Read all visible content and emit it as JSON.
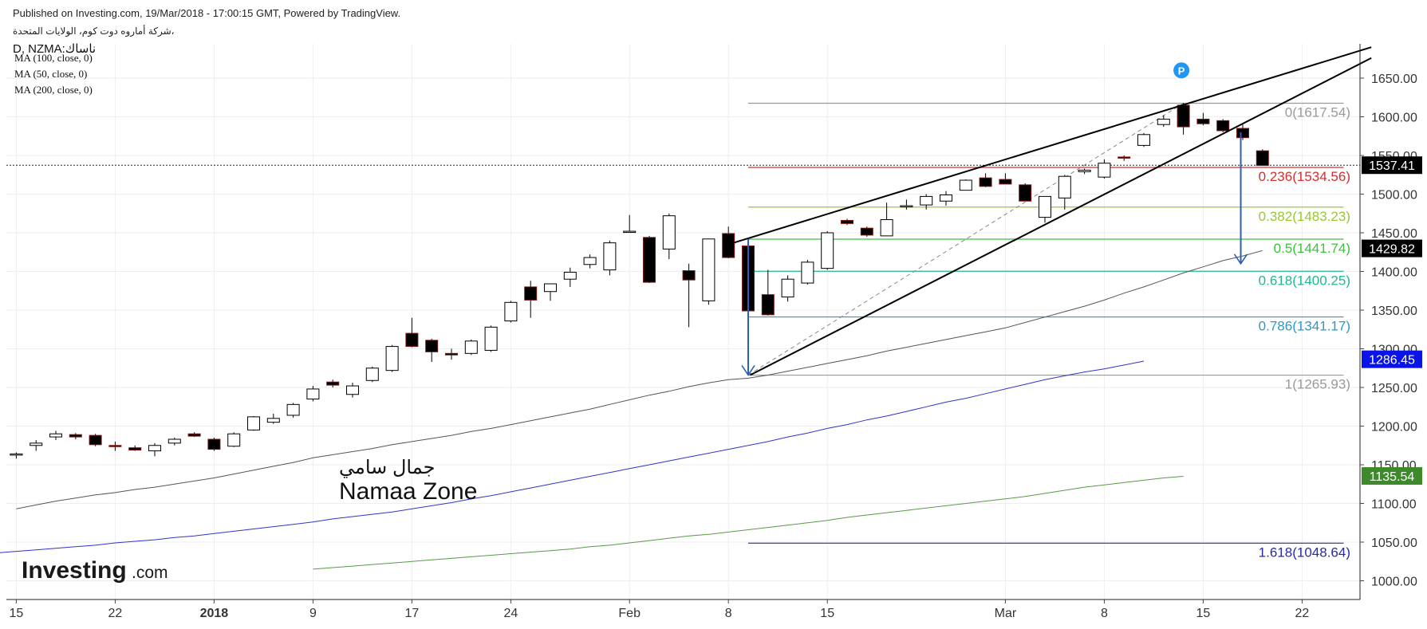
{
  "header": {
    "published": "Published on Investing.com, 19/Mar/2018 - 17:00:15 GMT, Powered by TradingView.",
    "company": "شركة أماروه دوت كوم، الولايات المتحدة،",
    "symbol": "D, NZMA:ناساك",
    "indicators": [
      "MA (100, close, 0)",
      "MA (50, close, 0)",
      "MA (200, close, 0)"
    ]
  },
  "watermark": {
    "arabic": "جمال سامي",
    "english": "Namaa Zone"
  },
  "logo": {
    "text": "Investing",
    "suffix": ".com"
  },
  "colors": {
    "up_fill": "#ffffff",
    "down_fill": "#000000",
    "candle_outline": "#000000",
    "ma100": "#555555",
    "ma50": "#3333cc",
    "ma200": "#5a9a4a",
    "arrow": "#2b5fb8",
    "trendline": "#000000",
    "marker": "#2196f3"
  },
  "chart_data": {
    "type": "candlestick",
    "y_axis": {
      "range": [
        980,
        1690
      ],
      "ticks": [
        "1650.00",
        "1600.00",
        "1550.00",
        "1500.00",
        "1450.00",
        "1400.00",
        "1350.00",
        "1300.00",
        "1250.00",
        "1200.00",
        "1150.00",
        "1100.00",
        "1050.00",
        "1000.00"
      ],
      "tick_values": [
        1650,
        1600,
        1550,
        1500,
        1450,
        1400,
        1350,
        1300,
        1250,
        1200,
        1150,
        1100,
        1050,
        1000
      ]
    },
    "x_axis": {
      "labels": [
        {
          "text": "15",
          "slot": 0.5,
          "bold": false
        },
        {
          "text": "22",
          "slot": 5.5,
          "bold": false
        },
        {
          "text": "2018",
          "slot": 10.5,
          "bold": true
        },
        {
          "text": "9",
          "slot": 15.5,
          "bold": false
        },
        {
          "text": "17",
          "slot": 20.5,
          "bold": false
        },
        {
          "text": "24",
          "slot": 25.5,
          "bold": false
        },
        {
          "text": "Feb",
          "slot": 31.5,
          "bold": false
        },
        {
          "text": "8",
          "slot": 36.5,
          "bold": false
        },
        {
          "text": "15",
          "slot": 41.5,
          "bold": false
        },
        {
          "text": "Mar",
          "slot": 50.5,
          "bold": false
        },
        {
          "text": "8",
          "slot": 55.5,
          "bold": false
        },
        {
          "text": "15",
          "slot": 60.5,
          "bold": false
        },
        {
          "text": "22",
          "slot": 65.5,
          "bold": false
        }
      ]
    },
    "candles": [
      {
        "o": 1163,
        "h": 1166,
        "l": 1158,
        "c": 1164
      },
      {
        "o": 1175,
        "h": 1182,
        "l": 1168,
        "c": 1178
      },
      {
        "o": 1186,
        "h": 1194,
        "l": 1182,
        "c": 1190
      },
      {
        "o": 1189,
        "h": 1191,
        "l": 1183,
        "c": 1186
      },
      {
        "o": 1188,
        "h": 1190,
        "l": 1174,
        "c": 1176
      },
      {
        "o": 1175,
        "h": 1180,
        "l": 1168,
        "c": 1174
      },
      {
        "o": 1172,
        "h": 1175,
        "l": 1168,
        "c": 1169
      },
      {
        "o": 1168,
        "h": 1178,
        "l": 1161,
        "c": 1175
      },
      {
        "o": 1178,
        "h": 1185,
        "l": 1175,
        "c": 1183
      },
      {
        "o": 1190,
        "h": 1192,
        "l": 1186,
        "c": 1187
      },
      {
        "o": 1183,
        "h": 1185,
        "l": 1168,
        "c": 1170
      },
      {
        "o": 1174,
        "h": 1192,
        "l": 1173,
        "c": 1190
      },
      {
        "o": 1195,
        "h": 1213,
        "l": 1194,
        "c": 1212
      },
      {
        "o": 1205,
        "h": 1216,
        "l": 1203,
        "c": 1210
      },
      {
        "o": 1214,
        "h": 1230,
        "l": 1211,
        "c": 1228
      },
      {
        "o": 1235,
        "h": 1252,
        "l": 1232,
        "c": 1248
      },
      {
        "o": 1257,
        "h": 1260,
        "l": 1250,
        "c": 1253
      },
      {
        "o": 1241,
        "h": 1256,
        "l": 1237,
        "c": 1252
      },
      {
        "o": 1259,
        "h": 1277,
        "l": 1257,
        "c": 1275
      },
      {
        "o": 1272,
        "h": 1305,
        "l": 1270,
        "c": 1303
      },
      {
        "o": 1320,
        "h": 1340,
        "l": 1302,
        "c": 1303
      },
      {
        "o": 1311,
        "h": 1313,
        "l": 1283,
        "c": 1296
      },
      {
        "o": 1294,
        "h": 1300,
        "l": 1286,
        "c": 1292
      },
      {
        "o": 1294,
        "h": 1312,
        "l": 1292,
        "c": 1310
      },
      {
        "o": 1298,
        "h": 1330,
        "l": 1296,
        "c": 1328
      },
      {
        "o": 1336,
        "h": 1362,
        "l": 1334,
        "c": 1360
      },
      {
        "o": 1380,
        "h": 1388,
        "l": 1340,
        "c": 1363
      },
      {
        "o": 1374,
        "h": 1384,
        "l": 1362,
        "c": 1384
      },
      {
        "o": 1390,
        "h": 1405,
        "l": 1380,
        "c": 1399
      },
      {
        "o": 1409,
        "h": 1422,
        "l": 1404,
        "c": 1418
      },
      {
        "o": 1402,
        "h": 1440,
        "l": 1395,
        "c": 1437
      },
      {
        "o": 1451,
        "h": 1473,
        "l": 1450,
        "c": 1452
      },
      {
        "o": 1444,
        "h": 1446,
        "l": 1385,
        "c": 1386
      },
      {
        "o": 1429,
        "h": 1475,
        "l": 1416,
        "c": 1472
      },
      {
        "o": 1401,
        "h": 1410,
        "l": 1328,
        "c": 1389
      },
      {
        "o": 1362,
        "h": 1441,
        "l": 1357,
        "c": 1442
      },
      {
        "o": 1449,
        "h": 1458,
        "l": 1417,
        "c": 1418
      },
      {
        "o": 1433,
        "h": 1440,
        "l": 1340,
        "c": 1349
      },
      {
        "o": 1370,
        "h": 1402,
        "l": 1343,
        "c": 1344
      },
      {
        "o": 1367,
        "h": 1395,
        "l": 1361,
        "c": 1390
      },
      {
        "o": 1385,
        "h": 1415,
        "l": 1383,
        "c": 1412
      },
      {
        "o": 1404,
        "h": 1452,
        "l": 1402,
        "c": 1450
      },
      {
        "o": 1466,
        "h": 1468,
        "l": 1460,
        "c": 1462
      },
      {
        "o": 1456,
        "h": 1458,
        "l": 1445,
        "c": 1447
      },
      {
        "o": 1446,
        "h": 1489,
        "l": 1446,
        "c": 1467
      },
      {
        "o": 1484,
        "h": 1493,
        "l": 1480,
        "c": 1485
      },
      {
        "o": 1486,
        "h": 1500,
        "l": 1480,
        "c": 1497
      },
      {
        "o": 1491,
        "h": 1504,
        "l": 1485,
        "c": 1499
      },
      {
        "o": 1505,
        "h": 1519,
        "l": 1505,
        "c": 1518
      },
      {
        "o": 1521,
        "h": 1527,
        "l": 1509,
        "c": 1510
      },
      {
        "o": 1519,
        "h": 1527,
        "l": 1514,
        "c": 1513
      },
      {
        "o": 1512,
        "h": 1514,
        "l": 1491,
        "c": 1491
      },
      {
        "o": 1470,
        "h": 1496,
        "l": 1463,
        "c": 1497
      },
      {
        "o": 1495,
        "h": 1525,
        "l": 1480,
        "c": 1523
      },
      {
        "o": 1529,
        "h": 1533,
        "l": 1526,
        "c": 1531
      },
      {
        "o": 1522,
        "h": 1545,
        "l": 1520,
        "c": 1540
      },
      {
        "o": 1548,
        "h": 1550,
        "l": 1543,
        "c": 1547
      },
      {
        "o": 1563,
        "h": 1579,
        "l": 1561,
        "c": 1577
      },
      {
        "o": 1590,
        "h": 1602,
        "l": 1587,
        "c": 1597
      },
      {
        "o": 1615,
        "h": 1618,
        "l": 1577,
        "c": 1587
      },
      {
        "o": 1597,
        "h": 1605,
        "l": 1589,
        "c": 1591
      },
      {
        "o": 1595,
        "h": 1597,
        "l": 1580,
        "c": 1582
      },
      {
        "o": 1585,
        "h": 1590,
        "l": 1570,
        "c": 1573
      },
      {
        "o": 1556,
        "h": 1558,
        "l": 1537,
        "c": 1537
      }
    ],
    "moving_averages": [
      {
        "label": "MA (100, close, 0)",
        "color_key": "ma100",
        "start_slot": 0,
        "values": [
          1093,
          1098,
          1103,
          1107,
          1111,
          1114,
          1118,
          1121,
          1125,
          1129,
          1133,
          1138,
          1143,
          1148,
          1153,
          1159,
          1163,
          1167,
          1171,
          1176,
          1180,
          1184,
          1188,
          1193,
          1197,
          1202,
          1207,
          1212,
          1217,
          1222,
          1228,
          1234,
          1240,
          1245,
          1251,
          1256,
          1260,
          1262,
          1266,
          1271,
          1276,
          1281,
          1286,
          1291,
          1297,
          1302,
          1307,
          1312,
          1317,
          1322,
          1327,
          1334,
          1341,
          1348,
          1355,
          1363,
          1372,
          1380,
          1389,
          1398,
          1406,
          1414,
          1420,
          1427
        ]
      },
      {
        "label": "MA (50, close, 0)",
        "color_key": "ma50",
        "start_slot": -1,
        "values": [
          1036,
          1038,
          1040,
          1042,
          1044,
          1046,
          1049,
          1051,
          1053,
          1056,
          1058,
          1061,
          1064,
          1067,
          1070,
          1073,
          1076,
          1080,
          1083,
          1086,
          1089,
          1093,
          1097,
          1101,
          1106,
          1110,
          1115,
          1120,
          1125,
          1130,
          1135,
          1140,
          1145,
          1150,
          1155,
          1160,
          1165,
          1170,
          1175,
          1180,
          1186,
          1191,
          1197,
          1202,
          1208,
          1213,
          1219,
          1225,
          1231,
          1236,
          1242,
          1248,
          1254,
          1260,
          1265,
          1270,
          1274,
          1279,
          1284
        ]
      },
      {
        "label": "MA (200, close, 0)",
        "color_key": "ma200",
        "start_slot": 15,
        "values": [
          1015,
          1017,
          1019,
          1021,
          1023,
          1025,
          1027,
          1029,
          1031,
          1033,
          1035,
          1037,
          1039,
          1041,
          1044,
          1046,
          1049,
          1052,
          1055,
          1058,
          1060,
          1063,
          1066,
          1069,
          1072,
          1075,
          1078,
          1082,
          1085,
          1088,
          1091,
          1094,
          1097,
          1100,
          1103,
          1106,
          1109,
          1113,
          1117,
          1121,
          1124,
          1127,
          1130,
          1133,
          1135
        ]
      }
    ],
    "fibonacci": {
      "start_slot": 37.5,
      "end_slot": 67.6,
      "levels": [
        {
          "ratio": "0",
          "price": 1617.54,
          "label": "0(1617.54)",
          "color": "#9a9a9a"
        },
        {
          "ratio": "0.236",
          "price": 1534.56,
          "label": "0.236(1534.56)",
          "color": "#d03030"
        },
        {
          "ratio": "0.382",
          "price": 1483.23,
          "label": "0.382(1483.23)",
          "color": "#9ac830"
        },
        {
          "ratio": "0.5",
          "price": 1441.74,
          "label": "0.5(1441.74)",
          "color": "#3ec040"
        },
        {
          "ratio": "0.618",
          "price": 1400.25,
          "label": "0.618(1400.25)",
          "color": "#20b890"
        },
        {
          "ratio": "0.786",
          "price": 1341.17,
          "label": "0.786(1341.17)",
          "color": "#2c98c8"
        },
        {
          "ratio": "1",
          "price": 1265.93,
          "label": "1(1265.93)",
          "color": "#9a9a9a"
        },
        {
          "ratio": "1.618",
          "price": 1048.64,
          "label": "1.618(1048.64)",
          "color": "#2a2aa8"
        }
      ],
      "diagonal": {
        "from_slot": 37.5,
        "from_price": 1265.93,
        "to_slot": 59.5,
        "to_price": 1617.54
      }
    },
    "trendlines": [
      {
        "from_slot": 36.5,
        "from_price": 1435,
        "to_slot": 69.0,
        "to_price": 1690
      },
      {
        "from_slot": 37.6,
        "from_price": 1266,
        "to_slot": 69.0,
        "to_price": 1676
      }
    ],
    "arrows": [
      {
        "slot": 37.5,
        "from_price": 1442,
        "to_price": 1266
      },
      {
        "slot": 62.4,
        "from_price": 1580,
        "to_price": 1410
      }
    ],
    "marker": {
      "text": "P",
      "slot": 59.4,
      "price": 1660
    },
    "price_labels": [
      {
        "text": "1537.41",
        "value": 1537.41,
        "bg": "#000000",
        "fg": "#ffffff"
      },
      {
        "text": "1429.82",
        "value": 1429.82,
        "bg": "#000000",
        "fg": "#ffffff"
      },
      {
        "text": "1286.45",
        "value": 1286.45,
        "bg": "#0a14e6",
        "fg": "#ffffff"
      },
      {
        "text": "1135.54",
        "value": 1135.54,
        "bg": "#3d8a2a",
        "fg": "#ffffff"
      }
    ],
    "last_price_line": 1537.41,
    "grid": true
  }
}
